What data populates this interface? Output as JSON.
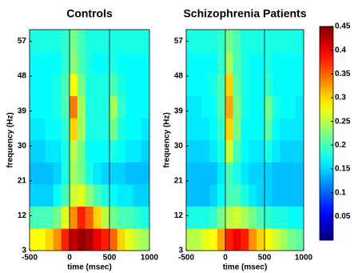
{
  "chart_data": [
    {
      "type": "heatmap",
      "title": "Controls",
      "xlabel": "time (msec)",
      "ylabel": "frequency (Hz)",
      "colormap": "jet",
      "xlim": [
        -500,
        1000
      ],
      "ylim": [
        3,
        60
      ],
      "xticks": [
        -500,
        0,
        500,
        1000
      ],
      "yticks": [
        3,
        12,
        21,
        30,
        39,
        48,
        57
      ],
      "event_markers": [
        0,
        500
      ],
      "x": [
        -450,
        -350,
        -250,
        -150,
        -50,
        50,
        150,
        250,
        350,
        450,
        550,
        650,
        750,
        850,
        950
      ],
      "y": [
        5.85,
        11.55,
        17.25,
        22.95,
        28.65,
        34.35,
        40.05,
        45.75,
        51.45,
        57.15
      ],
      "values": [
        [
          0.28,
          0.28,
          0.3,
          0.33,
          0.38,
          0.42,
          0.44,
          0.43,
          0.4,
          0.38,
          0.35,
          0.3,
          0.27,
          0.25,
          0.24
        ],
        [
          0.2,
          0.2,
          0.2,
          0.22,
          0.27,
          0.33,
          0.38,
          0.35,
          0.3,
          0.25,
          0.22,
          0.2,
          0.2,
          0.19,
          0.18
        ],
        [
          0.15,
          0.15,
          0.15,
          0.17,
          0.2,
          0.26,
          0.27,
          0.23,
          0.2,
          0.18,
          0.17,
          0.16,
          0.16,
          0.15,
          0.15
        ],
        [
          0.14,
          0.14,
          0.14,
          0.15,
          0.18,
          0.24,
          0.22,
          0.18,
          0.16,
          0.15,
          0.15,
          0.15,
          0.14,
          0.14,
          0.14
        ],
        [
          0.15,
          0.15,
          0.16,
          0.16,
          0.18,
          0.25,
          0.22,
          0.17,
          0.17,
          0.17,
          0.18,
          0.17,
          0.16,
          0.16,
          0.15
        ],
        [
          0.16,
          0.16,
          0.17,
          0.17,
          0.19,
          0.3,
          0.24,
          0.18,
          0.18,
          0.18,
          0.22,
          0.18,
          0.17,
          0.17,
          0.16
        ],
        [
          0.17,
          0.17,
          0.17,
          0.18,
          0.2,
          0.34,
          0.24,
          0.18,
          0.18,
          0.18,
          0.24,
          0.19,
          0.17,
          0.17,
          0.17
        ],
        [
          0.17,
          0.17,
          0.17,
          0.18,
          0.2,
          0.28,
          0.22,
          0.18,
          0.18,
          0.18,
          0.2,
          0.18,
          0.17,
          0.17,
          0.17
        ],
        [
          0.17,
          0.17,
          0.17,
          0.17,
          0.19,
          0.23,
          0.2,
          0.18,
          0.17,
          0.17,
          0.18,
          0.17,
          0.17,
          0.17,
          0.17
        ],
        [
          0.18,
          0.18,
          0.18,
          0.18,
          0.19,
          0.22,
          0.2,
          0.18,
          0.18,
          0.18,
          0.18,
          0.18,
          0.18,
          0.18,
          0.18
        ]
      ]
    },
    {
      "type": "heatmap",
      "title": "Schizophrenia Patients",
      "xlabel": "time (msec)",
      "ylabel": "frequency (Hz)",
      "colormap": "jet",
      "xlim": [
        -500,
        1000
      ],
      "ylim": [
        3,
        60
      ],
      "xticks": [
        -500,
        0,
        500,
        1000
      ],
      "yticks": [
        3,
        12,
        21,
        30,
        39,
        48,
        57
      ],
      "event_markers": [
        0,
        500
      ],
      "x": [
        -450,
        -350,
        -250,
        -150,
        -50,
        50,
        150,
        250,
        350,
        450,
        550,
        650,
        750,
        850,
        950
      ],
      "y": [
        5.85,
        11.55,
        17.25,
        22.95,
        28.65,
        34.35,
        40.05,
        45.75,
        51.45,
        57.15
      ],
      "values": [
        [
          0.25,
          0.25,
          0.27,
          0.28,
          0.32,
          0.38,
          0.4,
          0.38,
          0.33,
          0.3,
          0.28,
          0.26,
          0.24,
          0.22,
          0.21
        ],
        [
          0.18,
          0.18,
          0.18,
          0.19,
          0.22,
          0.25,
          0.26,
          0.24,
          0.22,
          0.2,
          0.19,
          0.18,
          0.18,
          0.17,
          0.17
        ],
        [
          0.14,
          0.14,
          0.14,
          0.15,
          0.17,
          0.2,
          0.2,
          0.18,
          0.16,
          0.15,
          0.15,
          0.14,
          0.14,
          0.14,
          0.14
        ],
        [
          0.14,
          0.14,
          0.14,
          0.14,
          0.16,
          0.2,
          0.18,
          0.16,
          0.15,
          0.15,
          0.15,
          0.14,
          0.14,
          0.14,
          0.14
        ],
        [
          0.15,
          0.15,
          0.15,
          0.16,
          0.18,
          0.26,
          0.2,
          0.17,
          0.16,
          0.16,
          0.18,
          0.16,
          0.15,
          0.15,
          0.15
        ],
        [
          0.16,
          0.16,
          0.16,
          0.17,
          0.19,
          0.3,
          0.22,
          0.17,
          0.17,
          0.17,
          0.21,
          0.17,
          0.16,
          0.16,
          0.16
        ],
        [
          0.16,
          0.16,
          0.17,
          0.17,
          0.2,
          0.32,
          0.22,
          0.18,
          0.17,
          0.17,
          0.22,
          0.18,
          0.17,
          0.17,
          0.16
        ],
        [
          0.17,
          0.17,
          0.17,
          0.18,
          0.2,
          0.3,
          0.21,
          0.18,
          0.17,
          0.17,
          0.19,
          0.17,
          0.17,
          0.17,
          0.17
        ],
        [
          0.17,
          0.17,
          0.17,
          0.17,
          0.19,
          0.24,
          0.2,
          0.18,
          0.17,
          0.17,
          0.18,
          0.17,
          0.17,
          0.17,
          0.17
        ],
        [
          0.18,
          0.18,
          0.18,
          0.18,
          0.19,
          0.22,
          0.2,
          0.18,
          0.18,
          0.18,
          0.18,
          0.18,
          0.18,
          0.18,
          0.18
        ]
      ]
    }
  ],
  "colorbar": {
    "colormap": "jet",
    "lim": [
      0,
      0.45
    ],
    "ticks": [
      0.05,
      0.1,
      0.15,
      0.2,
      0.25,
      0.3,
      0.35,
      0.4,
      0.45
    ]
  }
}
